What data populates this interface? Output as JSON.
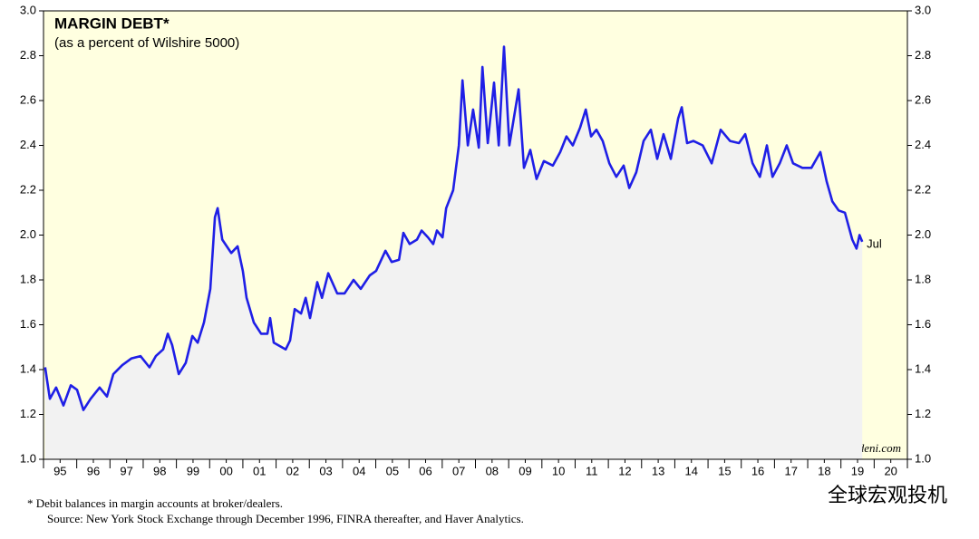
{
  "chart_data": {
    "type": "line",
    "title": "MARGIN DEBT*",
    "subtitle": "(as a percent of Wilshire 5000)",
    "annotation": "Jul",
    "credit": "yardeni.com",
    "footnote": "*  Debit balances in margin accounts at broker/dealers.",
    "source": "Source: New York Stock Exchange through December 1996, FINRA thereafter, and Haver Analytics.",
    "watermark": "全球宏观投机",
    "xlim": [
      1995,
      2021
    ],
    "xticks": [
      {
        "value": 1995.5,
        "label": "95"
      },
      {
        "value": 1996.5,
        "label": "96"
      },
      {
        "value": 1997.5,
        "label": "97"
      },
      {
        "value": 1998.5,
        "label": "98"
      },
      {
        "value": 1999.5,
        "label": "99"
      },
      {
        "value": 2000.5,
        "label": "00"
      },
      {
        "value": 2001.5,
        "label": "01"
      },
      {
        "value": 2002.5,
        "label": "02"
      },
      {
        "value": 2003.5,
        "label": "03"
      },
      {
        "value": 2004.5,
        "label": "04"
      },
      {
        "value": 2005.5,
        "label": "05"
      },
      {
        "value": 2006.5,
        "label": "06"
      },
      {
        "value": 2007.5,
        "label": "07"
      },
      {
        "value": 2008.5,
        "label": "08"
      },
      {
        "value": 2009.5,
        "label": "09"
      },
      {
        "value": 2010.5,
        "label": "10"
      },
      {
        "value": 2011.5,
        "label": "11"
      },
      {
        "value": 2012.5,
        "label": "12"
      },
      {
        "value": 2013.5,
        "label": "13"
      },
      {
        "value": 2014.5,
        "label": "14"
      },
      {
        "value": 2015.5,
        "label": "15"
      },
      {
        "value": 2016.5,
        "label": "16"
      },
      {
        "value": 2017.5,
        "label": "17"
      },
      {
        "value": 2018.5,
        "label": "18"
      },
      {
        "value": 2019.5,
        "label": "19"
      },
      {
        "value": 2020.5,
        "label": "20"
      }
    ],
    "ylim": [
      1,
      3
    ],
    "yticks": [
      {
        "value": 1,
        "label": "1.0"
      },
      1.2,
      1.4,
      1.6,
      1.8,
      {
        "value": 2,
        "label": "2.0"
      },
      2.2,
      2.4,
      2.6,
      2.8,
      {
        "value": 3,
        "label": "3.0"
      }
    ],
    "background": "#ffffe0",
    "area_color": "#f2f2f2",
    "series": [
      {
        "name": "Margin debt",
        "color": "#1f1fe6",
        "x": [
          1995.05,
          1995.19,
          1995.38,
          1995.6,
          1995.82,
          1996.01,
          1996.2,
          1996.42,
          1996.69,
          1996.91,
          1997.1,
          1997.37,
          1997.65,
          1997.92,
          1998.19,
          1998.38,
          1998.6,
          1998.74,
          1998.87,
          1999.07,
          1999.28,
          1999.48,
          1999.64,
          1999.83,
          2000.02,
          2000.16,
          2000.24,
          2000.38,
          2000.65,
          2000.84,
          2001.0,
          2001.11,
          2001.33,
          2001.55,
          2001.74,
          2001.82,
          2001.93,
          2002.29,
          2002.42,
          2002.56,
          2002.75,
          2002.89,
          2003.02,
          2003.24,
          2003.38,
          2003.57,
          2003.84,
          2004.06,
          2004.33,
          2004.55,
          2004.82,
          2005.01,
          2005.29,
          2005.48,
          2005.7,
          2005.83,
          2006.02,
          2006.24,
          2006.38,
          2006.57,
          2006.73,
          2006.84,
          2007.01,
          2007.12,
          2007.33,
          2007.5,
          2007.61,
          2007.77,
          2007.93,
          2008.1,
          2008.21,
          2008.37,
          2008.56,
          2008.7,
          2008.86,
          2009.02,
          2009.3,
          2009.46,
          2009.65,
          2009.84,
          2010.06,
          2010.33,
          2010.55,
          2010.74,
          2010.93,
          2011.15,
          2011.32,
          2011.48,
          2011.64,
          2011.83,
          2012.03,
          2012.24,
          2012.46,
          2012.63,
          2012.84,
          2013.06,
          2013.28,
          2013.47,
          2013.66,
          2013.88,
          2014.1,
          2014.21,
          2014.37,
          2014.56,
          2014.84,
          2015.11,
          2015.38,
          2015.66,
          2015.93,
          2016.12,
          2016.34,
          2016.56,
          2016.77,
          2016.94,
          2017.16,
          2017.37,
          2017.56,
          2017.84,
          2018.11,
          2018.38,
          2018.57,
          2018.74,
          2018.93,
          2019.12,
          2019.34,
          2019.47,
          2019.56,
          2019.64
        ],
        "values": [
          1.41,
          1.27,
          1.32,
          1.24,
          1.33,
          1.31,
          1.22,
          1.27,
          1.32,
          1.28,
          1.38,
          1.42,
          1.45,
          1.46,
          1.41,
          1.46,
          1.49,
          1.56,
          1.51,
          1.38,
          1.43,
          1.55,
          1.52,
          1.61,
          1.76,
          2.08,
          2.12,
          1.98,
          1.92,
          1.95,
          1.84,
          1.72,
          1.61,
          1.56,
          1.56,
          1.63,
          1.52,
          1.49,
          1.53,
          1.67,
          1.65,
          1.72,
          1.63,
          1.79,
          1.72,
          1.83,
          1.74,
          1.74,
          1.8,
          1.76,
          1.82,
          1.84,
          1.93,
          1.88,
          1.89,
          2.01,
          1.96,
          1.98,
          2.02,
          1.99,
          1.96,
          2.02,
          1.99,
          2.12,
          2.2,
          2.4,
          2.69,
          2.4,
          2.56,
          2.39,
          2.75,
          2.41,
          2.68,
          2.4,
          2.84,
          2.4,
          2.65,
          2.3,
          2.38,
          2.25,
          2.33,
          2.31,
          2.37,
          2.44,
          2.4,
          2.48,
          2.56,
          2.44,
          2.47,
          2.42,
          2.32,
          2.26,
          2.31,
          2.21,
          2.28,
          2.42,
          2.47,
          2.34,
          2.45,
          2.34,
          2.52,
          2.57,
          2.41,
          2.42,
          2.4,
          2.32,
          2.47,
          2.42,
          2.41,
          2.45,
          2.32,
          2.26,
          2.4,
          2.26,
          2.32,
          2.4,
          2.32,
          2.3,
          2.3,
          2.37,
          2.24,
          2.15,
          2.11,
          2.1,
          1.98,
          1.94,
          2.0,
          1.97
        ]
      }
    ]
  }
}
